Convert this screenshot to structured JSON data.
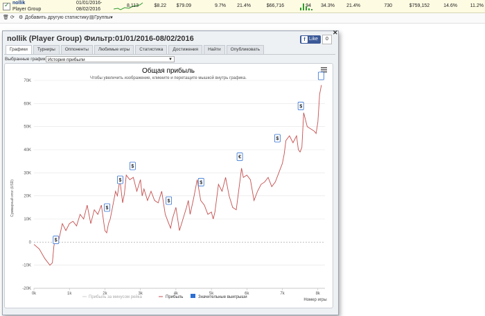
{
  "stats_row": {
    "player": "nollik",
    "group": "Player Group",
    "date_from": "01/01/2016-",
    "date_to": "08/02/2016",
    "values": [
      "8,113",
      "$8.22",
      "$79.09",
      "9.7%",
      "21.4%",
      "$66,716",
      "94"
    ],
    "values2": [
      "34.3%",
      "21.4%",
      "730",
      "$759,152",
      "14.6%",
      "11.2%"
    ]
  },
  "toolbar": {
    "add_stats": "Добавить другую статистику",
    "groups": "Группы"
  },
  "dialog": {
    "title": "nollik (Player Group) Фильтр:01/01/2016-08/02/2016",
    "like": "Like",
    "like_count": "0",
    "tabs": [
      "Графики",
      "Турниры",
      "Оппоненты",
      "Любимые игры",
      "Статистика",
      "Достижения",
      "Найти",
      "Опубликовать"
    ],
    "active_tab": 0,
    "select_label": "Выбранные графики:",
    "select_value": "История прибыли"
  },
  "chart_data": {
    "type": "line",
    "title": "Общая прибыль",
    "subtitle": "Чтобы увеличить изображение, кликните и перетащите мышкой внутрь графика.",
    "xlabel": "Номер игры",
    "ylabel": "Суммарный итог (USD)",
    "xlim": [
      0,
      8200
    ],
    "ylim": [
      -20000,
      70000
    ],
    "x_ticks": [
      "0k",
      "1k",
      "2k",
      "3k",
      "4k",
      "5k",
      "6k",
      "7k",
      "8k"
    ],
    "y_ticks": [
      "-20K",
      "-10K",
      "0",
      "10K",
      "20K",
      "30K",
      "40K",
      "50K",
      "60K",
      "70K"
    ],
    "legend": [
      "Прибыль за минусом рейка",
      "Прибыль",
      "Значительные выигрыши"
    ],
    "colors": {
      "profit": "#c44d4d",
      "rake": "#cccccc",
      "wins": "#2e6fd1",
      "title": "#2a3d52"
    },
    "series": [
      {
        "name": "Прибыль",
        "x": [
          0,
          150,
          300,
          450,
          520,
          560,
          600,
          700,
          800,
          900,
          1000,
          1100,
          1200,
          1300,
          1400,
          1450,
          1500,
          1600,
          1700,
          1800,
          1900,
          2000,
          2050,
          2100,
          2150,
          2200,
          2300,
          2350,
          2420,
          2500,
          2550,
          2600,
          2700,
          2800,
          2900,
          3000,
          3050,
          3100,
          3200,
          3300,
          3400,
          3500,
          3600,
          3700,
          3800,
          3850,
          3900,
          4000,
          4100,
          4200,
          4300,
          4350,
          4400,
          4500,
          4600,
          4700,
          4800,
          4900,
          5000,
          5050,
          5100,
          5200,
          5300,
          5400,
          5500,
          5600,
          5700,
          5800,
          5850,
          5900,
          6000,
          6100,
          6200,
          6300,
          6400,
          6500,
          6600,
          6700,
          6800,
          6900,
          7000,
          7050,
          7100,
          7200,
          7300,
          7400,
          7450,
          7500,
          7550,
          7600,
          7700,
          7800,
          7900,
          7950,
          8000,
          8050,
          8100
        ],
        "y": [
          -1000,
          -3000,
          -7000,
          -10000,
          -9000,
          -2000,
          2000,
          1000,
          8000,
          5000,
          8000,
          9000,
          7000,
          12000,
          10000,
          13000,
          16000,
          8000,
          14000,
          12000,
          16000,
          5000,
          4000,
          8000,
          10000,
          14000,
          22000,
          20000,
          27000,
          17000,
          21000,
          29000,
          27000,
          28000,
          22000,
          27000,
          20000,
          23000,
          18000,
          22000,
          18000,
          17000,
          22000,
          12000,
          8000,
          6000,
          10000,
          15000,
          5000,
          10000,
          15000,
          18000,
          12000,
          19000,
          27000,
          18000,
          16000,
          12000,
          13000,
          10000,
          13000,
          25000,
          22000,
          28000,
          20000,
          15000,
          14000,
          26000,
          32000,
          28000,
          29000,
          27000,
          18000,
          22000,
          25000,
          26000,
          28000,
          24000,
          26000,
          30000,
          34000,
          38000,
          44000,
          46000,
          43000,
          46000,
          40000,
          39000,
          41000,
          56000,
          50000,
          49000,
          48000,
          47000,
          52000,
          64000,
          68000
        ]
      }
    ],
    "big_wins": [
      {
        "x": 620,
        "y": -1000,
        "label": "$"
      },
      {
        "x": 2060,
        "y": 13000,
        "label": "$"
      },
      {
        "x": 2430,
        "y": 25000,
        "label": "$"
      },
      {
        "x": 2780,
        "y": 31000,
        "label": "$"
      },
      {
        "x": 3800,
        "y": 16000,
        "label": "$"
      },
      {
        "x": 4710,
        "y": 24000,
        "label": "$"
      },
      {
        "x": 5800,
        "y": 35000,
        "label": "€"
      },
      {
        "x": 6860,
        "y": 43000,
        "label": "$"
      },
      {
        "x": 7520,
        "y": 57000,
        "label": "$"
      },
      {
        "x": 8090,
        "y": 70000,
        "label": ""
      }
    ]
  }
}
